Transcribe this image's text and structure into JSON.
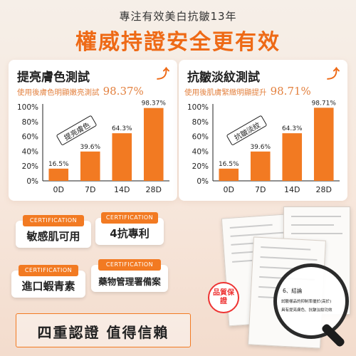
{
  "header": {
    "subtitle": "專注有效美白抗皺13年",
    "headline": "權威持證安全更有效"
  },
  "tests": [
    {
      "title": "提亮膚色測試",
      "description": "使用後膚色明顯嫩亮測試",
      "percent": "98.37%",
      "ribbon": "提亮膚色",
      "chart_data": {
        "type": "bar",
        "categories": [
          "0D",
          "7D",
          "14D",
          "28D"
        ],
        "values": [
          16.5,
          39.6,
          64.3,
          98.37
        ],
        "value_labels": [
          "16.5%",
          "39.6%",
          "64.3%",
          "98.37%"
        ],
        "ytick_labels": [
          "0%",
          "20%",
          "40%",
          "60%",
          "80%",
          "100%"
        ],
        "ylim": [
          0,
          100
        ],
        "color": "#f27a22"
      }
    },
    {
      "title": "抗皺淡紋測試",
      "description": "使用後肌膚緊緻明顯提升",
      "percent": "98.71%",
      "ribbon": "抗皺淡紋",
      "chart_data": {
        "type": "bar",
        "categories": [
          "0D",
          "7D",
          "14D",
          "28D"
        ],
        "values": [
          16.5,
          39.6,
          64.3,
          98.71
        ],
        "value_labels": [
          "16.5%",
          "39.6%",
          "64.3%",
          "98.71%"
        ],
        "ytick_labels": [
          "0%",
          "20%",
          "40%",
          "60%",
          "80%",
          "100%"
        ],
        "ylim": [
          0,
          100
        ],
        "color": "#f27a22"
      }
    }
  ],
  "badges": [
    {
      "tag": "CERTIFICATION",
      "text": "敏感肌可用"
    },
    {
      "tag": "CERTIFICATION",
      "text": "4抗專利"
    },
    {
      "tag": "CERTIFICATION",
      "text": "進口蝦青素"
    },
    {
      "tag": "CERTIFICATION",
      "text": "藥物管理署備案"
    }
  ],
  "footer": {
    "text": "四重認證 值得信賴"
  },
  "seal": {
    "text": "品質保證"
  },
  "magnifier": {
    "line1": "6、結論",
    "line2": "試驗樣品的抑制率優於(高於)",
    "line3": "具有提亮膚色、抗皺淡紋功效"
  },
  "colors": {
    "accent": "#f27a22",
    "headline": "#ee6a16",
    "desc": "#e3813f"
  }
}
